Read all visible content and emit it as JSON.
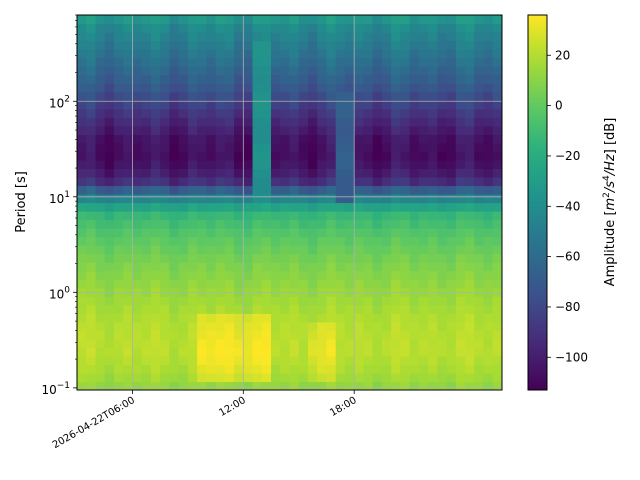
{
  "chart_data": {
    "type": "heatmap",
    "title": "",
    "xlabel": "",
    "ylabel": "Period [s]",
    "x_range_hours": [
      3.0,
      26.0
    ],
    "x_ticks": [
      {
        "hour": 6,
        "label": "2026-04-22T06:00"
      },
      {
        "hour": 12,
        "label": "12:00"
      },
      {
        "hour": 18,
        "label": "18:00"
      }
    ],
    "y_scale": "log",
    "y_range": [
      0.095,
      800
    ],
    "y_ticks": [
      {
        "value": 0.1,
        "base": "10",
        "exp": "−1"
      },
      {
        "value": 1,
        "base": "10",
        "exp": "0"
      },
      {
        "value": 10,
        "base": "10",
        "exp": "1"
      },
      {
        "value": 100,
        "base": "10",
        "exp": "2"
      }
    ],
    "grid": true,
    "colormap": "viridis",
    "colorbar": {
      "label_prefix": "Amplitude [",
      "label_math": "m",
      "label_sup1": "2",
      "label_mid": "/s",
      "label_sup2": "4",
      "label_tail": "/Hz",
      "label_suffix": "] [dB]",
      "range": [
        -113,
        36
      ],
      "ticks": [
        {
          "value": 20,
          "label": "20"
        },
        {
          "value": 0,
          "label": "0"
        },
        {
          "value": -20,
          "label": "−20"
        },
        {
          "value": -40,
          "label": "−40"
        },
        {
          "value": -60,
          "label": "−60"
        },
        {
          "value": -80,
          "label": "−80"
        },
        {
          "value": -100,
          "label": "−100"
        }
      ]
    },
    "profile_period_s": [
      0.1,
      0.15,
      0.25,
      0.5,
      1,
      2,
      4,
      7,
      10,
      15,
      25,
      40,
      80,
      150,
      300,
      600,
      800
    ],
    "profile_db": [
      12,
      18,
      22,
      20,
      14,
      7,
      -3,
      -15,
      -48,
      -95,
      -108,
      -105,
      -88,
      -70,
      -55,
      -42,
      -30
    ],
    "anomalies": [
      {
        "hour_start": 9.5,
        "hour_end": 13.5,
        "period_min": 0.12,
        "period_max": 0.6,
        "db_boost": 14
      },
      {
        "hour_start": 15.5,
        "hour_end": 17.0,
        "period_min": 0.12,
        "period_max": 0.5,
        "db_boost": 10
      },
      {
        "hour_start": 12.5,
        "hour_end": 13.5,
        "period_min": 8,
        "period_max": 400,
        "db_set": -38
      },
      {
        "hour_start": 17.0,
        "hour_end": 18.0,
        "period_min": 8,
        "period_max": 130,
        "db_set": -68
      }
    ]
  }
}
